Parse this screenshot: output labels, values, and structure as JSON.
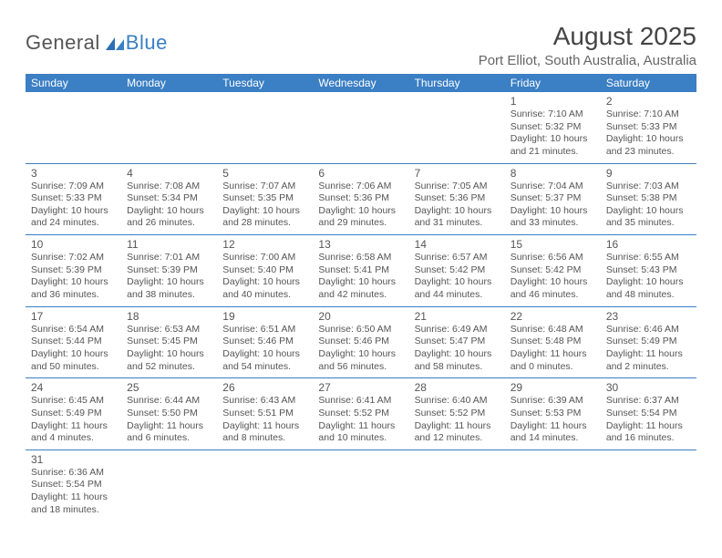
{
  "logo": {
    "text1": "General",
    "text2": "Blue"
  },
  "title": "August 2025",
  "location": "Port Elliot, South Australia, Australia",
  "style": {
    "header_bg": "#3b7fc4",
    "header_fg": "#ffffff",
    "text_color": "#555555",
    "border_color": "#3b7fc4",
    "background": "#ffffff",
    "title_fontsize": 28,
    "location_fontsize": 15,
    "daynum_fontsize": 12,
    "line_fontsize": 10.5
  },
  "dow": [
    "Sunday",
    "Monday",
    "Tuesday",
    "Wednesday",
    "Thursday",
    "Friday",
    "Saturday"
  ],
  "weeks": [
    [
      null,
      null,
      null,
      null,
      null,
      {
        "n": "1",
        "sr": "Sunrise: 7:10 AM",
        "ss": "Sunset: 5:32 PM",
        "d1": "Daylight: 10 hours",
        "d2": "and 21 minutes."
      },
      {
        "n": "2",
        "sr": "Sunrise: 7:10 AM",
        "ss": "Sunset: 5:33 PM",
        "d1": "Daylight: 10 hours",
        "d2": "and 23 minutes."
      }
    ],
    [
      {
        "n": "3",
        "sr": "Sunrise: 7:09 AM",
        "ss": "Sunset: 5:33 PM",
        "d1": "Daylight: 10 hours",
        "d2": "and 24 minutes."
      },
      {
        "n": "4",
        "sr": "Sunrise: 7:08 AM",
        "ss": "Sunset: 5:34 PM",
        "d1": "Daylight: 10 hours",
        "d2": "and 26 minutes."
      },
      {
        "n": "5",
        "sr": "Sunrise: 7:07 AM",
        "ss": "Sunset: 5:35 PM",
        "d1": "Daylight: 10 hours",
        "d2": "and 28 minutes."
      },
      {
        "n": "6",
        "sr": "Sunrise: 7:06 AM",
        "ss": "Sunset: 5:36 PM",
        "d1": "Daylight: 10 hours",
        "d2": "and 29 minutes."
      },
      {
        "n": "7",
        "sr": "Sunrise: 7:05 AM",
        "ss": "Sunset: 5:36 PM",
        "d1": "Daylight: 10 hours",
        "d2": "and 31 minutes."
      },
      {
        "n": "8",
        "sr": "Sunrise: 7:04 AM",
        "ss": "Sunset: 5:37 PM",
        "d1": "Daylight: 10 hours",
        "d2": "and 33 minutes."
      },
      {
        "n": "9",
        "sr": "Sunrise: 7:03 AM",
        "ss": "Sunset: 5:38 PM",
        "d1": "Daylight: 10 hours",
        "d2": "and 35 minutes."
      }
    ],
    [
      {
        "n": "10",
        "sr": "Sunrise: 7:02 AM",
        "ss": "Sunset: 5:39 PM",
        "d1": "Daylight: 10 hours",
        "d2": "and 36 minutes."
      },
      {
        "n": "11",
        "sr": "Sunrise: 7:01 AM",
        "ss": "Sunset: 5:39 PM",
        "d1": "Daylight: 10 hours",
        "d2": "and 38 minutes."
      },
      {
        "n": "12",
        "sr": "Sunrise: 7:00 AM",
        "ss": "Sunset: 5:40 PM",
        "d1": "Daylight: 10 hours",
        "d2": "and 40 minutes."
      },
      {
        "n": "13",
        "sr": "Sunrise: 6:58 AM",
        "ss": "Sunset: 5:41 PM",
        "d1": "Daylight: 10 hours",
        "d2": "and 42 minutes."
      },
      {
        "n": "14",
        "sr": "Sunrise: 6:57 AM",
        "ss": "Sunset: 5:42 PM",
        "d1": "Daylight: 10 hours",
        "d2": "and 44 minutes."
      },
      {
        "n": "15",
        "sr": "Sunrise: 6:56 AM",
        "ss": "Sunset: 5:42 PM",
        "d1": "Daylight: 10 hours",
        "d2": "and 46 minutes."
      },
      {
        "n": "16",
        "sr": "Sunrise: 6:55 AM",
        "ss": "Sunset: 5:43 PM",
        "d1": "Daylight: 10 hours",
        "d2": "and 48 minutes."
      }
    ],
    [
      {
        "n": "17",
        "sr": "Sunrise: 6:54 AM",
        "ss": "Sunset: 5:44 PM",
        "d1": "Daylight: 10 hours",
        "d2": "and 50 minutes."
      },
      {
        "n": "18",
        "sr": "Sunrise: 6:53 AM",
        "ss": "Sunset: 5:45 PM",
        "d1": "Daylight: 10 hours",
        "d2": "and 52 minutes."
      },
      {
        "n": "19",
        "sr": "Sunrise: 6:51 AM",
        "ss": "Sunset: 5:46 PM",
        "d1": "Daylight: 10 hours",
        "d2": "and 54 minutes."
      },
      {
        "n": "20",
        "sr": "Sunrise: 6:50 AM",
        "ss": "Sunset: 5:46 PM",
        "d1": "Daylight: 10 hours",
        "d2": "and 56 minutes."
      },
      {
        "n": "21",
        "sr": "Sunrise: 6:49 AM",
        "ss": "Sunset: 5:47 PM",
        "d1": "Daylight: 10 hours",
        "d2": "and 58 minutes."
      },
      {
        "n": "22",
        "sr": "Sunrise: 6:48 AM",
        "ss": "Sunset: 5:48 PM",
        "d1": "Daylight: 11 hours",
        "d2": "and 0 minutes."
      },
      {
        "n": "23",
        "sr": "Sunrise: 6:46 AM",
        "ss": "Sunset: 5:49 PM",
        "d1": "Daylight: 11 hours",
        "d2": "and 2 minutes."
      }
    ],
    [
      {
        "n": "24",
        "sr": "Sunrise: 6:45 AM",
        "ss": "Sunset: 5:49 PM",
        "d1": "Daylight: 11 hours",
        "d2": "and 4 minutes."
      },
      {
        "n": "25",
        "sr": "Sunrise: 6:44 AM",
        "ss": "Sunset: 5:50 PM",
        "d1": "Daylight: 11 hours",
        "d2": "and 6 minutes."
      },
      {
        "n": "26",
        "sr": "Sunrise: 6:43 AM",
        "ss": "Sunset: 5:51 PM",
        "d1": "Daylight: 11 hours",
        "d2": "and 8 minutes."
      },
      {
        "n": "27",
        "sr": "Sunrise: 6:41 AM",
        "ss": "Sunset: 5:52 PM",
        "d1": "Daylight: 11 hours",
        "d2": "and 10 minutes."
      },
      {
        "n": "28",
        "sr": "Sunrise: 6:40 AM",
        "ss": "Sunset: 5:52 PM",
        "d1": "Daylight: 11 hours",
        "d2": "and 12 minutes."
      },
      {
        "n": "29",
        "sr": "Sunrise: 6:39 AM",
        "ss": "Sunset: 5:53 PM",
        "d1": "Daylight: 11 hours",
        "d2": "and 14 minutes."
      },
      {
        "n": "30",
        "sr": "Sunrise: 6:37 AM",
        "ss": "Sunset: 5:54 PM",
        "d1": "Daylight: 11 hours",
        "d2": "and 16 minutes."
      }
    ],
    [
      {
        "n": "31",
        "sr": "Sunrise: 6:36 AM",
        "ss": "Sunset: 5:54 PM",
        "d1": "Daylight: 11 hours",
        "d2": "and 18 minutes."
      },
      null,
      null,
      null,
      null,
      null,
      null
    ]
  ]
}
